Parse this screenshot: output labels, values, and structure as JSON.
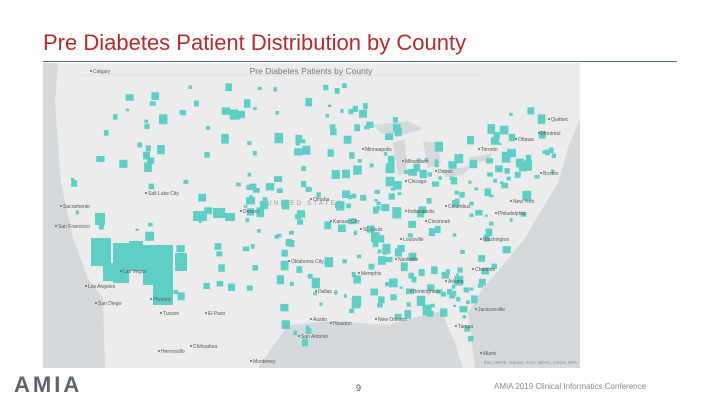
{
  "header": {
    "title": "Pre Diabetes Patient Distribution by County"
  },
  "map": {
    "title": "Pre Diabetes Patients by County",
    "country_label": "UNITED STATES",
    "labels": [
      "Montréal",
      "Québec",
      "Ottawa",
      "Toronto",
      "Minneapolis",
      "Milwaukee",
      "Detroit",
      "Chicago",
      "Boston",
      "New York",
      "Philadelphia",
      "Washington",
      "Salt Lake City",
      "Denver",
      "Kansas City",
      "Omaha",
      "St. Louis",
      "Indianapolis",
      "Columbus",
      "Cincinnati",
      "Louisville",
      "Nashville",
      "Charlotte",
      "Atlanta",
      "Memphis",
      "Birmingham",
      "Oklahoma City",
      "Dallas",
      "Houston",
      "San Antonio",
      "Austin",
      "New Orleans",
      "Jacksonville",
      "Tampa",
      "Miami",
      "Phoenix",
      "Tucson",
      "Las Vegas",
      "Los Angeles",
      "San Diego",
      "San Francisco",
      "Sacramento",
      "El Paso",
      "Chihuahua",
      "Monterrey",
      "Hermosillo",
      "Calgary"
    ],
    "attribution": "Esri, HERE, Garmin, FAO, NOAA, USGS, EPA"
  },
  "footer": {
    "logo": "AMIA",
    "page_number": "9",
    "conference": "AMIA 2019 Clinical Informatics Conference"
  }
}
